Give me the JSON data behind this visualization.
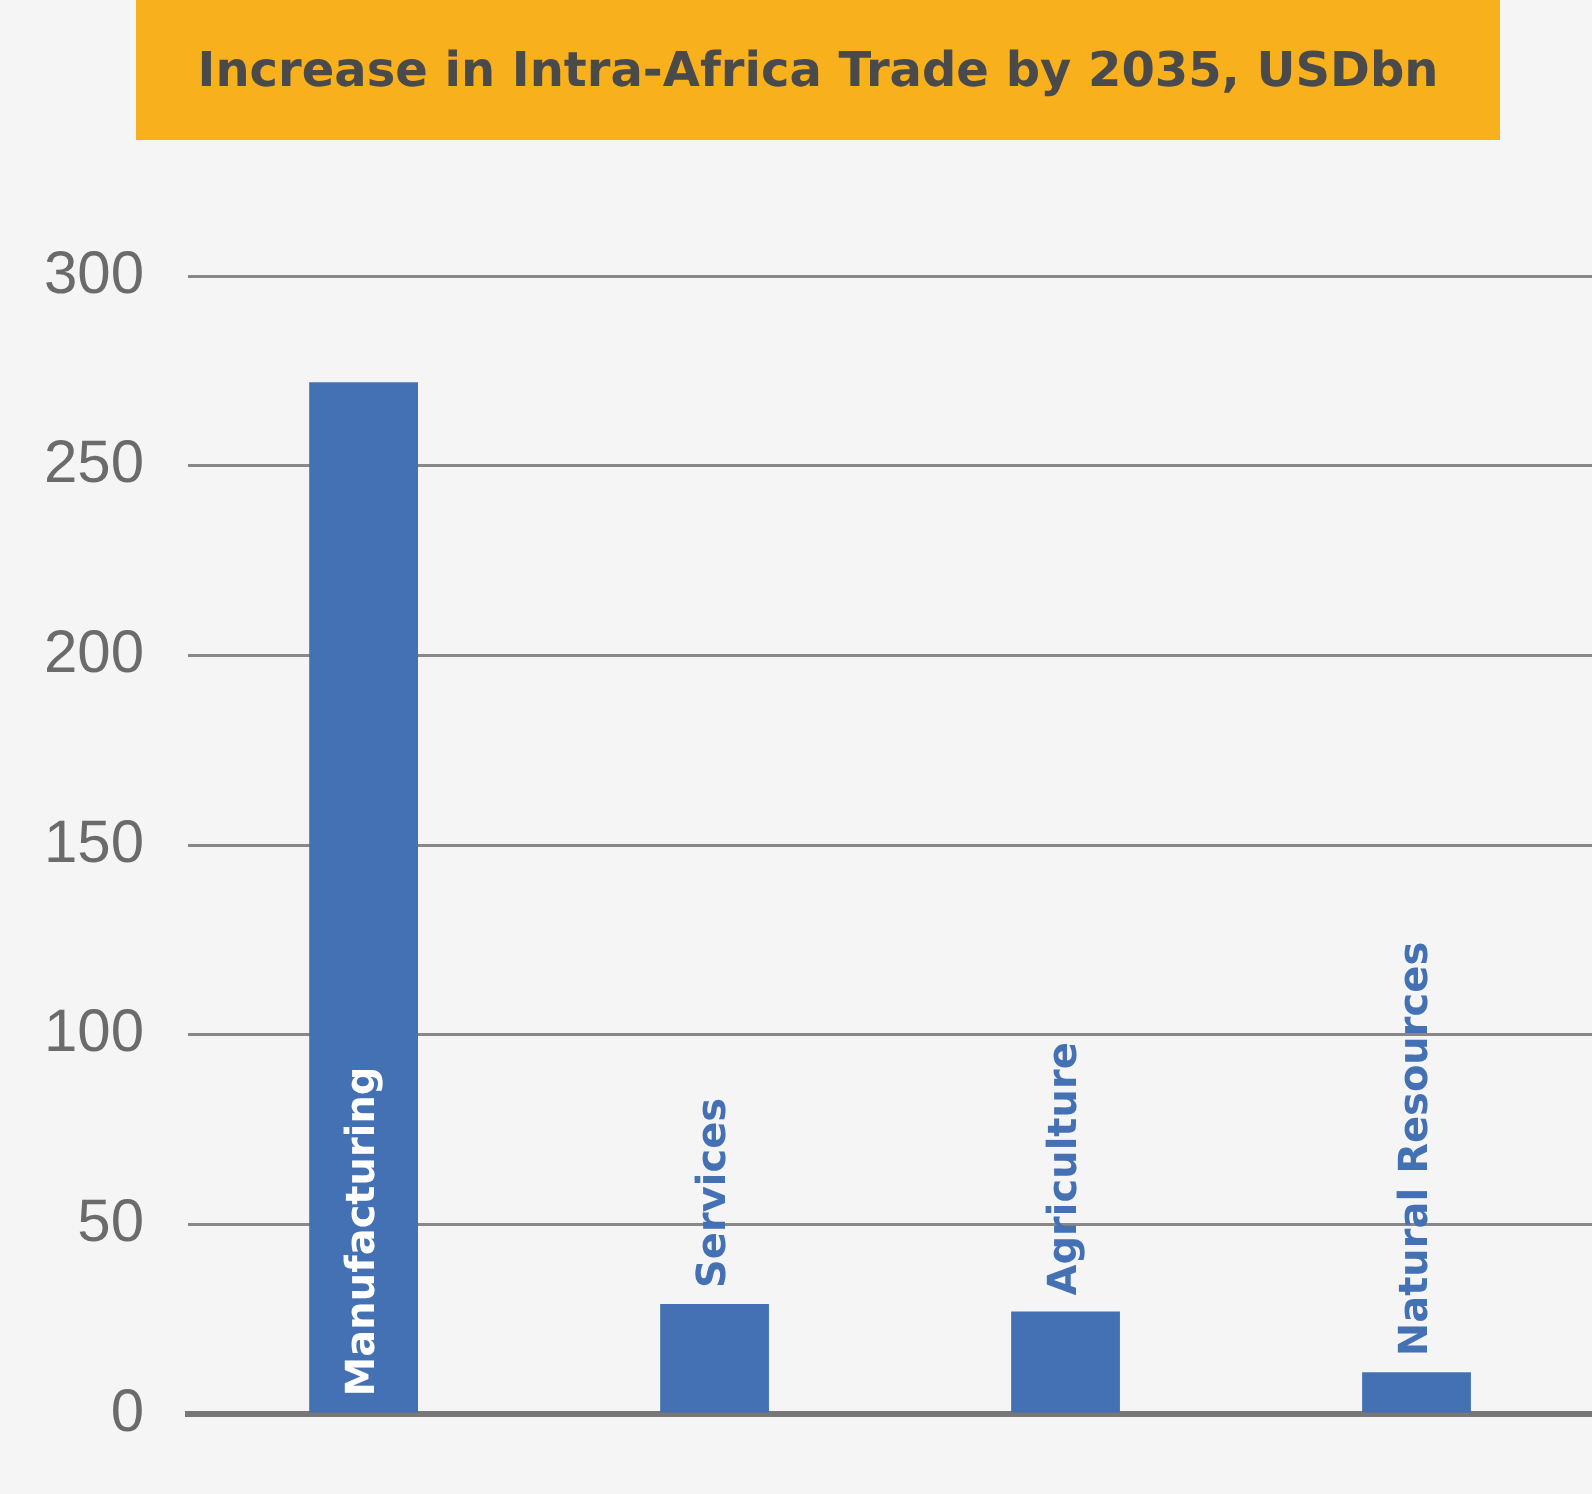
{
  "chart_data": {
    "type": "bar",
    "title": "Increase in Intra-Africa Trade by 2035, USDbn",
    "categories": [
      "Manufacturing",
      "Services",
      "Agriculture",
      "Natural Resources"
    ],
    "values": [
      272,
      29,
      27,
      11
    ],
    "color": "#4470b4",
    "ylim": [
      0,
      300
    ],
    "yticks": [
      0,
      50,
      100,
      150,
      200,
      250,
      300
    ],
    "grid": "y",
    "legend": false
  }
}
